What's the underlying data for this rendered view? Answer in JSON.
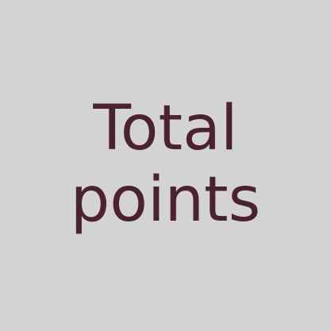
{
  "tile": {
    "line1": "Total",
    "line2": "points",
    "text_color": "#4a2233",
    "background_color": "#d3d3d3"
  }
}
